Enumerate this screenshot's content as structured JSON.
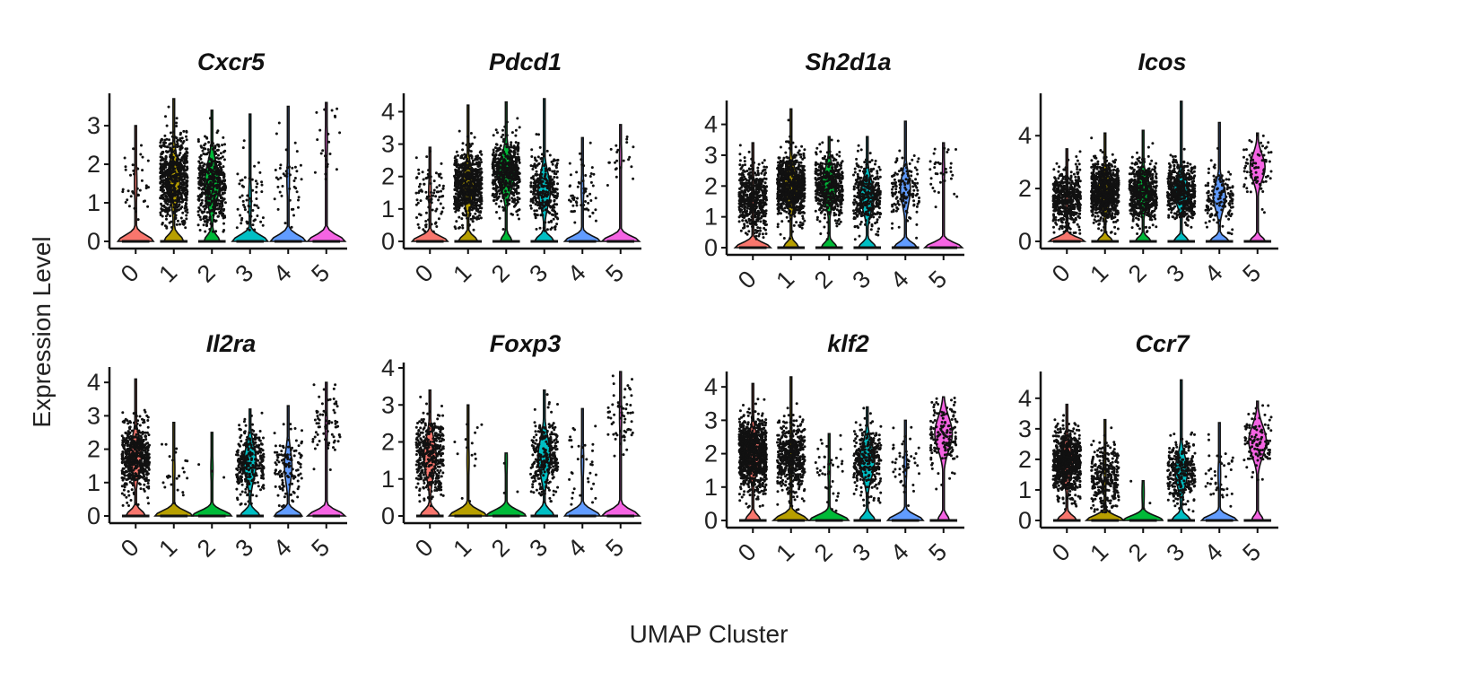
{
  "chart_data": {
    "type": "violin",
    "xlabel": "UMAP Cluster",
    "ylabel": "Expression Level",
    "categories": [
      "0",
      "1",
      "2",
      "3",
      "4",
      "5"
    ],
    "cluster_colors": [
      "#F8766D",
      "#B79F00",
      "#00BA38",
      "#00BFC4",
      "#619CFF",
      "#F564E3"
    ],
    "panels": [
      {
        "gene": "Cxcr5",
        "ylim": [
          0,
          3.7
        ],
        "yticks": [
          0,
          1,
          2,
          3
        ],
        "cells": [
          40,
          650,
          450,
          60,
          45,
          22
        ],
        "median_nonzero": [
          1.5,
          1.6,
          1.5,
          1.1,
          1.6,
          2.6
        ],
        "max": [
          3.0,
          3.7,
          3.4,
          3.3,
          3.5,
          3.6
        ],
        "zero_frac": [
          0.9,
          0.5,
          0.4,
          0.9,
          0.9,
          0.95
        ]
      },
      {
        "gene": "Pdcd1",
        "ylim": [
          0,
          4.4
        ],
        "yticks": [
          0,
          1,
          2,
          3,
          4
        ],
        "cells": [
          90,
          650,
          500,
          300,
          60,
          22
        ],
        "median_nonzero": [
          1.5,
          1.7,
          2.1,
          1.6,
          1.6,
          2.6
        ],
        "max": [
          2.9,
          4.2,
          4.3,
          4.4,
          3.2,
          3.6
        ],
        "zero_frac": [
          0.9,
          0.5,
          0.3,
          0.5,
          0.9,
          0.95
        ]
      },
      {
        "gene": "Sh2d1a",
        "ylim": [
          0,
          4.6
        ],
        "yticks": [
          0,
          1,
          2,
          3,
          4
        ],
        "cells": [
          500,
          750,
          450,
          350,
          150,
          35
        ],
        "median_nonzero": [
          1.6,
          2.0,
          2.0,
          1.7,
          1.9,
          2.5
        ],
        "max": [
          3.4,
          4.5,
          3.6,
          3.6,
          4.1,
          3.4
        ],
        "zero_frac": [
          0.9,
          0.4,
          0.4,
          0.45,
          0.6,
          0.95
        ]
      },
      {
        "gene": "Icos",
        "ylim": [
          0,
          5.4
        ],
        "yticks": [
          0,
          2,
          4
        ],
        "cells": [
          500,
          750,
          500,
          500,
          150,
          80
        ],
        "median_nonzero": [
          1.6,
          1.9,
          1.9,
          1.9,
          1.7,
          2.8
        ],
        "max": [
          3.5,
          4.1,
          4.2,
          5.3,
          4.5,
          4.1
        ],
        "zero_frac": [
          0.9,
          0.4,
          0.4,
          0.4,
          0.5,
          0.4
        ]
      },
      {
        "gene": "Il2ra",
        "ylim": [
          0,
          4.3
        ],
        "yticks": [
          0,
          1,
          2,
          3,
          4
        ],
        "cells": [
          550,
          25,
          3,
          300,
          120,
          70
        ],
        "median_nonzero": [
          1.8,
          1.4,
          1.4,
          1.6,
          1.5,
          2.7
        ],
        "max": [
          4.1,
          2.8,
          2.5,
          3.2,
          3.3,
          4.0
        ],
        "zero_frac": [
          0.5,
          0.95,
          0.99,
          0.5,
          0.7,
          0.95
        ]
      },
      {
        "gene": "Foxp3",
        "ylim": [
          0,
          4.0
        ],
        "yticks": [
          0,
          1,
          2,
          3,
          4
        ],
        "cells": [
          400,
          15,
          3,
          280,
          35,
          60
        ],
        "median_nonzero": [
          1.6,
          1.5,
          1.5,
          1.6,
          1.5,
          2.7
        ],
        "max": [
          3.4,
          3.0,
          1.7,
          3.4,
          2.9,
          3.9
        ],
        "zero_frac": [
          0.5,
          0.95,
          0.99,
          0.5,
          0.9,
          0.95
        ]
      },
      {
        "gene": "klf2",
        "ylim": [
          0,
          4.3
        ],
        "yticks": [
          0,
          1,
          2,
          3,
          4
        ],
        "cells": [
          900,
          500,
          40,
          300,
          50,
          150
        ],
        "median_nonzero": [
          2.0,
          1.9,
          1.5,
          1.8,
          1.6,
          2.6
        ],
        "max": [
          4.1,
          4.3,
          2.6,
          3.4,
          3.0,
          3.7
        ],
        "zero_frac": [
          0.4,
          0.9,
          0.99,
          0.4,
          0.9,
          0.3
        ]
      },
      {
        "gene": "Ccr7",
        "ylim": [
          0,
          4.7
        ],
        "yticks": [
          0,
          1,
          2,
          3,
          4
        ],
        "cells": [
          800,
          300,
          3,
          280,
          40,
          110
        ],
        "median_nonzero": [
          1.9,
          1.4,
          0.9,
          1.6,
          1.5,
          2.6
        ],
        "max": [
          3.8,
          3.3,
          1.3,
          4.6,
          3.2,
          3.9
        ],
        "zero_frac": [
          0.5,
          0.95,
          0.99,
          0.5,
          0.9,
          0.3
        ]
      }
    ]
  }
}
